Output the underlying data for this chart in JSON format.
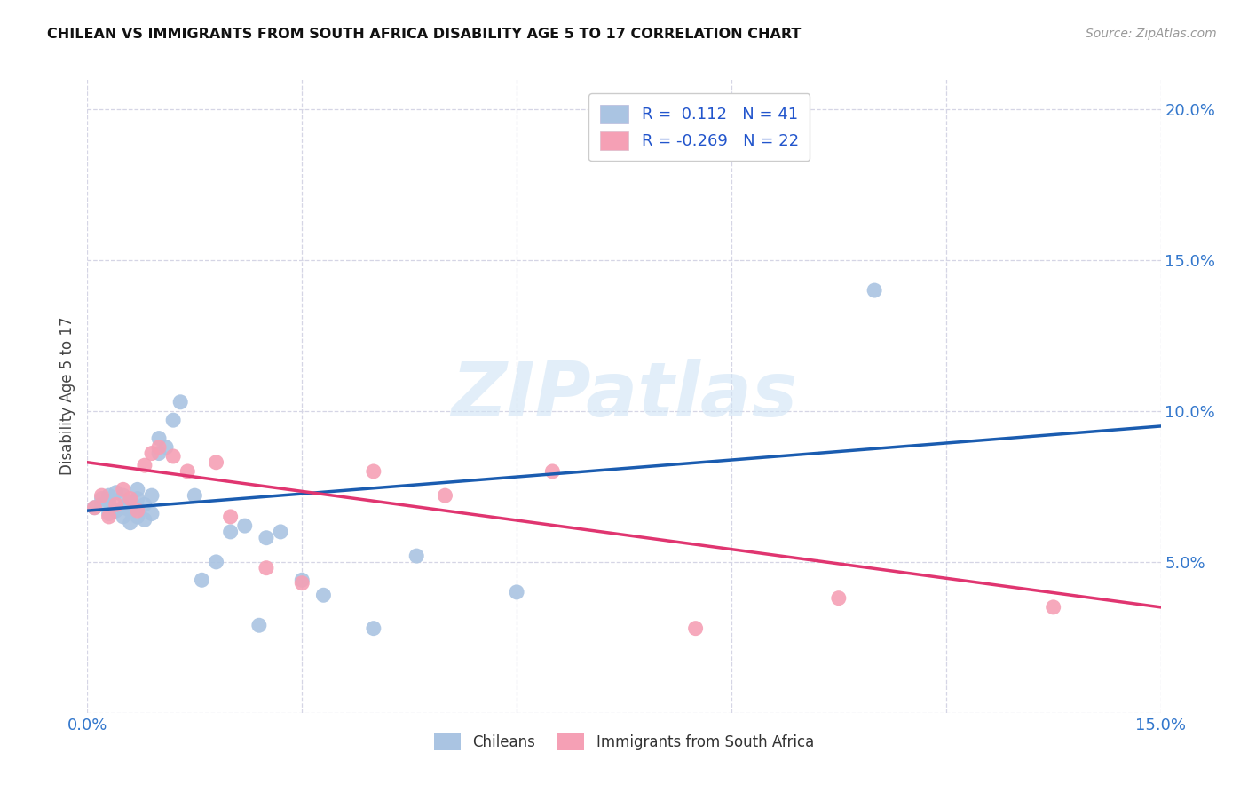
{
  "title": "CHILEAN VS IMMIGRANTS FROM SOUTH AFRICA DISABILITY AGE 5 TO 17 CORRELATION CHART",
  "source": "Source: ZipAtlas.com",
  "ylabel": "Disability Age 5 to 17",
  "xlim": [
    0.0,
    0.15
  ],
  "ylim": [
    0.0,
    0.21
  ],
  "xticks": [
    0.0,
    0.03,
    0.06,
    0.09,
    0.12,
    0.15
  ],
  "xtick_labels": [
    "0.0%",
    "",
    "",
    "",
    "",
    "15.0%"
  ],
  "yticks": [
    0.0,
    0.05,
    0.1,
    0.15,
    0.2
  ],
  "ytick_labels": [
    "",
    "5.0%",
    "10.0%",
    "15.0%",
    "20.0%"
  ],
  "chilean_color": "#aac4e2",
  "sa_color": "#f5a0b5",
  "line_chilean_color": "#1a5cb0",
  "line_sa_color": "#e03570",
  "r_chilean": 0.112,
  "n_chilean": 41,
  "r_sa": -0.269,
  "n_sa": 22,
  "chilean_x": [
    0.001,
    0.002,
    0.002,
    0.003,
    0.003,
    0.003,
    0.004,
    0.004,
    0.005,
    0.005,
    0.005,
    0.006,
    0.006,
    0.006,
    0.007,
    0.007,
    0.007,
    0.007,
    0.008,
    0.008,
    0.009,
    0.009,
    0.01,
    0.01,
    0.011,
    0.012,
    0.013,
    0.015,
    0.016,
    0.018,
    0.02,
    0.022,
    0.024,
    0.025,
    0.027,
    0.03,
    0.033,
    0.04,
    0.046,
    0.06,
    0.11
  ],
  "chilean_y": [
    0.068,
    0.069,
    0.071,
    0.066,
    0.07,
    0.072,
    0.067,
    0.073,
    0.065,
    0.068,
    0.072,
    0.063,
    0.067,
    0.07,
    0.065,
    0.068,
    0.071,
    0.074,
    0.064,
    0.069,
    0.066,
    0.072,
    0.086,
    0.091,
    0.088,
    0.097,
    0.103,
    0.072,
    0.044,
    0.05,
    0.06,
    0.062,
    0.029,
    0.058,
    0.06,
    0.044,
    0.039,
    0.028,
    0.052,
    0.04,
    0.14
  ],
  "sa_x": [
    0.001,
    0.002,
    0.003,
    0.004,
    0.005,
    0.006,
    0.007,
    0.008,
    0.009,
    0.01,
    0.012,
    0.014,
    0.018,
    0.02,
    0.025,
    0.03,
    0.04,
    0.05,
    0.065,
    0.085,
    0.105,
    0.135
  ],
  "sa_y": [
    0.068,
    0.072,
    0.065,
    0.069,
    0.074,
    0.071,
    0.067,
    0.082,
    0.086,
    0.088,
    0.085,
    0.08,
    0.083,
    0.065,
    0.048,
    0.043,
    0.08,
    0.072,
    0.08,
    0.028,
    0.038,
    0.035
  ],
  "line_chilean_x0": 0.0,
  "line_chilean_y0": 0.067,
  "line_chilean_x1": 0.15,
  "line_chilean_y1": 0.095,
  "line_sa_x0": 0.0,
  "line_sa_y0": 0.083,
  "line_sa_x1": 0.15,
  "line_sa_y1": 0.035,
  "watermark": "ZIPatlas",
  "legend_label_1": "Chileans",
  "legend_label_2": "Immigrants from South Africa"
}
